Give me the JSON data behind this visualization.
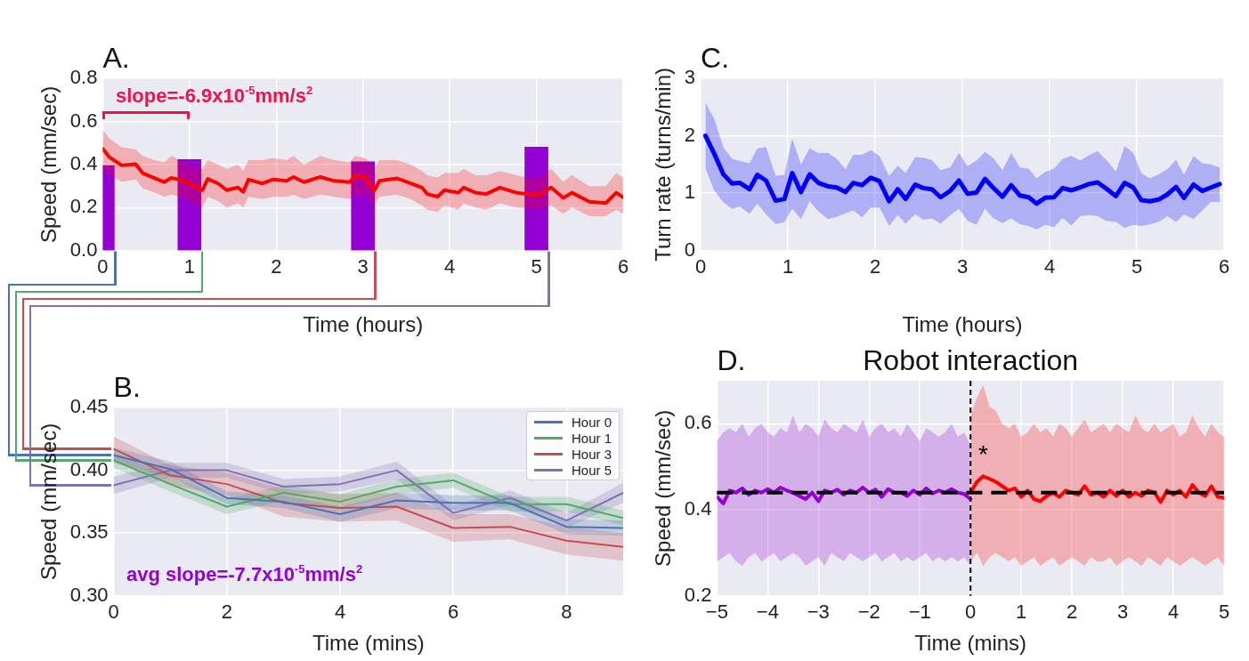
{
  "chart_data": [
    {
      "type": "line",
      "title": "A.",
      "xlabel": "Time (hours)",
      "ylabel": "Speed (mm/sec)",
      "grid": true,
      "xlim": [
        0,
        6
      ],
      "xticks": [
        0,
        1,
        2,
        3,
        4,
        5,
        6
      ],
      "ylim": [
        0,
        0.8
      ],
      "yticks": [
        {
          "value": 0,
          "label": "0.0"
        },
        0.2,
        0.4,
        0.6,
        0.8
      ],
      "annotations": [
        "slope=-6.9x10$^{-5}$mm/s$^{2}$"
      ],
      "series": [
        {
          "type": "bar",
          "color": "#9400d3",
          "x": [
            0,
            1,
            3,
            5
          ],
          "values": [
            0.395,
            0.423,
            0.413,
            0.481
          ]
        },
        {
          "type": "line",
          "color": "#ff0000",
          "x": [
            0,
            0.08,
            0.22,
            0.38,
            0.46,
            0.6,
            0.71,
            0.79,
            0.89,
            1.01,
            1.15,
            1.21,
            1.33,
            1.43,
            1.56,
            1.62,
            1.68,
            1.84,
            1.96,
            2.12,
            2.2,
            2.32,
            2.51,
            2.67,
            2.85,
            2.91,
            3.03,
            3.13,
            3.19,
            3.39,
            3.55,
            3.68,
            3.74,
            3.86,
            3.94,
            4.1,
            4.16,
            4.3,
            4.42,
            4.58,
            4.77,
            5.01,
            5.17,
            5.31,
            5.41,
            5.61,
            5.8,
            5.92,
            6
          ],
          "values": [
            0.473,
            0.433,
            0.396,
            0.402,
            0.36,
            0.336,
            0.318,
            0.338,
            0.33,
            0.309,
            0.281,
            0.333,
            0.312,
            0.281,
            0.293,
            0.273,
            0.33,
            0.312,
            0.33,
            0.324,
            0.342,
            0.318,
            0.342,
            0.324,
            0.318,
            0.348,
            0.342,
            0.279,
            0.324,
            0.336,
            0.312,
            0.293,
            0.263,
            0.251,
            0.281,
            0.269,
            0.293,
            0.269,
            0.263,
            0.293,
            0.269,
            0.257,
            0.293,
            0.245,
            0.269,
            0.227,
            0.221,
            0.269,
            0.247
          ],
          "upper": [
            0.56,
            0.52,
            0.48,
            0.47,
            0.44,
            0.42,
            0.41,
            0.44,
            0.42,
            0.39,
            0.38,
            0.42,
            0.4,
            0.38,
            0.4,
            0.37,
            0.42,
            0.42,
            0.43,
            0.42,
            0.44,
            0.4,
            0.44,
            0.42,
            0.41,
            0.44,
            0.43,
            0.38,
            0.42,
            0.42,
            0.4,
            0.37,
            0.35,
            0.34,
            0.36,
            0.36,
            0.38,
            0.35,
            0.35,
            0.37,
            0.35,
            0.33,
            0.38,
            0.32,
            0.35,
            0.3,
            0.3,
            0.36,
            0.34
          ],
          "lower": [
            0.39,
            0.35,
            0.32,
            0.33,
            0.29,
            0.27,
            0.25,
            0.26,
            0.25,
            0.23,
            0.2,
            0.25,
            0.23,
            0.2,
            0.22,
            0.2,
            0.25,
            0.24,
            0.25,
            0.25,
            0.26,
            0.24,
            0.26,
            0.25,
            0.24,
            0.26,
            0.26,
            0.21,
            0.25,
            0.26,
            0.24,
            0.21,
            0.19,
            0.18,
            0.21,
            0.19,
            0.22,
            0.2,
            0.19,
            0.22,
            0.2,
            0.19,
            0.21,
            0.17,
            0.2,
            0.16,
            0.16,
            0.19,
            0.17
          ]
        }
      ]
    },
    {
      "type": "line",
      "title": "C.",
      "xlabel": "Time (hours)",
      "ylabel": "Turn rate (turns/min)",
      "grid": true,
      "xlim": [
        0,
        6
      ],
      "xticks": [
        0,
        1,
        2,
        3,
        4,
        5,
        6
      ],
      "ylim": [
        0,
        3
      ],
      "yticks": [
        0,
        1,
        2,
        3
      ],
      "series": [
        {
          "color": "#0000ff",
          "x": [
            0.055,
            0.155,
            0.26,
            0.36,
            0.45,
            0.56,
            0.65,
            0.75,
            0.86,
            0.96,
            1.05,
            1.15,
            1.25,
            1.35,
            1.46,
            1.56,
            1.66,
            1.75,
            1.85,
            1.95,
            2.05,
            2.16,
            2.26,
            2.35,
            2.46,
            2.55,
            2.65,
            2.75,
            2.86,
            2.96,
            3.06,
            3.16,
            3.26,
            3.35,
            3.46,
            3.56,
            3.66,
            3.76,
            3.85,
            3.95,
            4.05,
            4.15,
            4.25,
            4.35,
            4.45,
            4.55,
            4.65,
            4.76,
            4.86,
            4.96,
            5.05,
            5.15,
            5.25,
            5.35,
            5.45,
            5.54,
            5.65,
            5.75,
            5.85,
            5.95
          ],
          "values": [
            2.0,
            1.69,
            1.33,
            1.17,
            1.18,
            1.07,
            1.32,
            1.22,
            0.87,
            0.9,
            1.35,
            1.02,
            1.33,
            1.18,
            1.12,
            1.1,
            1.02,
            1.18,
            1.14,
            1.27,
            1.21,
            0.86,
            1.07,
            0.9,
            1.15,
            1.09,
            1.07,
            0.93,
            1.04,
            1.22,
            0.99,
            1.01,
            1.25,
            1.1,
            0.94,
            1.14,
            0.96,
            0.93,
            0.82,
            0.92,
            0.93,
            1.09,
            1.05,
            1.1,
            1.16,
            1.19,
            1.08,
            0.95,
            1.18,
            1.1,
            0.88,
            0.86,
            0.89,
            0.98,
            1.11,
            0.92,
            1.15,
            1.04,
            1.1,
            1.16
          ],
          "upper": [
            2.58,
            2.3,
            1.8,
            1.6,
            1.56,
            1.52,
            1.78,
            1.8,
            1.3,
            1.32,
            1.95,
            1.5,
            1.78,
            1.7,
            1.7,
            1.6,
            1.42,
            1.67,
            1.67,
            1.75,
            1.65,
            1.3,
            1.48,
            1.35,
            1.63,
            1.62,
            1.58,
            1.4,
            1.45,
            1.7,
            1.47,
            1.57,
            1.72,
            1.62,
            1.4,
            1.7,
            1.45,
            1.43,
            1.26,
            1.37,
            1.43,
            1.6,
            1.65,
            1.57,
            1.66,
            1.73,
            1.58,
            1.38,
            1.82,
            1.7,
            1.35,
            1.26,
            1.33,
            1.42,
            1.58,
            1.32,
            1.65,
            1.52,
            1.5,
            1.45
          ],
          "lower": [
            1.43,
            1.05,
            0.84,
            0.73,
            0.77,
            0.64,
            0.82,
            0.63,
            0.46,
            0.5,
            0.73,
            0.55,
            0.86,
            0.68,
            0.55,
            0.59,
            0.65,
            0.7,
            0.58,
            0.75,
            0.75,
            0.43,
            0.62,
            0.47,
            0.64,
            0.54,
            0.56,
            0.47,
            0.62,
            0.73,
            0.52,
            0.45,
            0.73,
            0.57,
            0.48,
            0.56,
            0.46,
            0.43,
            0.37,
            0.45,
            0.41,
            0.57,
            0.44,
            0.6,
            0.62,
            0.6,
            0.52,
            0.5,
            0.4,
            0.45,
            0.43,
            0.46,
            0.5,
            0.6,
            0.5,
            0.63,
            0.55,
            0.7,
            0.85,
            0.85
          ]
        }
      ]
    },
    {
      "type": "line",
      "title": "B.",
      "xlabel": "Time (mins)",
      "ylabel": "Speed (mm/sec)",
      "grid": true,
      "legend": "top right",
      "x": [
        0,
        1,
        2,
        3,
        4,
        5,
        6,
        7,
        8,
        9
      ],
      "xlim": [
        0,
        9
      ],
      "xticks": [
        0,
        2,
        4,
        6,
        8
      ],
      "ylim": [
        0.3,
        0.45
      ],
      "yticks": [
        {
          "value": 0.3,
          "label": "0.30"
        },
        0.35,
        {
          "value": 0.4,
          "label": "0.40"
        },
        0.45
      ],
      "annotations": [
        "avg slope=-7.7x10$^{-5}$mm/s$^{2}$"
      ],
      "series": [
        {
          "name": "Hour 0",
          "color": "#4c72b0",
          "values": [
            0.412,
            0.401,
            0.378,
            0.375,
            0.365,
            0.376,
            0.374,
            0.374,
            0.355,
            0.354
          ],
          "lower": [
            0.406,
            0.395,
            0.373,
            0.37,
            0.359,
            0.37,
            0.368,
            0.368,
            0.349,
            0.348
          ],
          "upper": [
            0.418,
            0.407,
            0.383,
            0.38,
            0.371,
            0.382,
            0.38,
            0.38,
            0.361,
            0.36
          ]
        },
        {
          "name": "Hour 1",
          "color": "#55a868",
          "values": [
            0.408,
            0.389,
            0.371,
            0.382,
            0.375,
            0.387,
            0.392,
            0.373,
            0.373,
            0.362
          ],
          "lower": [
            0.402,
            0.383,
            0.365,
            0.376,
            0.369,
            0.381,
            0.386,
            0.367,
            0.367,
            0.356
          ],
          "upper": [
            0.414,
            0.395,
            0.377,
            0.388,
            0.381,
            0.393,
            0.398,
            0.379,
            0.379,
            0.368
          ]
        },
        {
          "name": "Hour 3",
          "color": "#c44e52",
          "values": [
            0.417,
            0.396,
            0.389,
            0.374,
            0.37,
            0.371,
            0.354,
            0.355,
            0.344,
            0.339
          ],
          "lower": [
            0.407,
            0.388,
            0.38,
            0.363,
            0.359,
            0.36,
            0.343,
            0.345,
            0.333,
            0.328
          ],
          "upper": [
            0.427,
            0.404,
            0.398,
            0.385,
            0.381,
            0.382,
            0.365,
            0.365,
            0.355,
            0.35
          ]
        },
        {
          "name": "Hour 5",
          "color": "#8172b2",
          "values": [
            0.388,
            0.4,
            0.4,
            0.387,
            0.389,
            0.4,
            0.366,
            0.378,
            0.36,
            0.382
          ],
          "lower": [
            0.381,
            0.394,
            0.394,
            0.381,
            0.383,
            0.393,
            0.36,
            0.372,
            0.354,
            0.374
          ],
          "upper": [
            0.395,
            0.406,
            0.406,
            0.393,
            0.395,
            0.407,
            0.372,
            0.384,
            0.366,
            0.39
          ]
        }
      ]
    },
    {
      "type": "line",
      "title": "D.",
      "subtitle": "Robot interaction",
      "xlabel": "Time (mins)",
      "ylabel": "Speed (mm/sec)",
      "grid": true,
      "xlim": [
        -5,
        5
      ],
      "xticks": [
        {
          "value": -5,
          "label": "−5"
        },
        {
          "value": -4,
          "label": "−4"
        },
        {
          "value": -3,
          "label": "−3"
        },
        {
          "value": -2,
          "label": "−2"
        },
        {
          "value": -1,
          "label": "−1"
        },
        0,
        1,
        2,
        3,
        4,
        5
      ],
      "ylim": [
        0.2,
        0.7
      ],
      "yticks": [
        0.2,
        0.4,
        0.6
      ],
      "ref_lines": [
        {
          "axis": "y",
          "value": 0.44,
          "color": "#000000",
          "line_style": "dashed"
        },
        {
          "axis": "x",
          "value": 0,
          "color": "#000000",
          "line_style": "dashed"
        }
      ],
      "annotations": [
        "*"
      ],
      "series": [
        {
          "color": "#9400d3",
          "x": [
            -5,
            -4.875,
            -4.75,
            -4.625,
            -4.5,
            -4.375,
            -4.25,
            -4.125,
            -4,
            -3.875,
            -3.75,
            -3.625,
            -3.5,
            -3.375,
            -3.25,
            -3.125,
            -3,
            -2.875,
            -2.75,
            -2.625,
            -2.5,
            -2.375,
            -2.25,
            -2.125,
            -2,
            -1.875,
            -1.75,
            -1.625,
            -1.5,
            -1.375,
            -1.25,
            -1.125,
            -1,
            -0.875,
            -0.75,
            -0.625,
            -0.5,
            -0.375,
            -0.25,
            -0.125,
            0
          ],
          "values": [
            0.43,
            0.415,
            0.445,
            0.44,
            0.45,
            0.435,
            0.445,
            0.44,
            0.448,
            0.44,
            0.452,
            0.445,
            0.44,
            0.432,
            0.425,
            0.44,
            0.42,
            0.445,
            0.44,
            0.447,
            0.435,
            0.445,
            0.44,
            0.452,
            0.44,
            0.447,
            0.43,
            0.448,
            0.44,
            0.44,
            0.432,
            0.445,
            0.435,
            0.45,
            0.438,
            0.445,
            0.44,
            0.448,
            0.44,
            0.437,
            0.425
          ],
          "upper": [
            0.56,
            0.58,
            0.59,
            0.58,
            0.6,
            0.57,
            0.59,
            0.6,
            0.58,
            0.57,
            0.59,
            0.58,
            0.62,
            0.58,
            0.6,
            0.59,
            0.57,
            0.61,
            0.59,
            0.58,
            0.6,
            0.59,
            0.58,
            0.61,
            0.57,
            0.59,
            0.6,
            0.58,
            0.59,
            0.57,
            0.6,
            0.58,
            0.56,
            0.59,
            0.58,
            0.57,
            0.58,
            0.6,
            0.57,
            0.58,
            0.55
          ],
          "lower": [
            0.28,
            0.29,
            0.3,
            0.28,
            0.27,
            0.29,
            0.3,
            0.28,
            0.29,
            0.3,
            0.28,
            0.29,
            0.3,
            0.29,
            0.27,
            0.28,
            0.29,
            0.27,
            0.3,
            0.29,
            0.28,
            0.3,
            0.29,
            0.28,
            0.29,
            0.3,
            0.28,
            0.29,
            0.3,
            0.28,
            0.29,
            0.28,
            0.29,
            0.3,
            0.28,
            0.29,
            0.28,
            0.29,
            0.28,
            0.29,
            0.27
          ]
        },
        {
          "color": "#ff0000",
          "x": [
            0,
            0.125,
            0.25,
            0.375,
            0.5,
            0.625,
            0.75,
            0.875,
            1,
            1.125,
            1.25,
            1.375,
            1.5,
            1.625,
            1.75,
            1.875,
            2,
            2.125,
            2.25,
            2.375,
            2.5,
            2.625,
            2.75,
            2.875,
            3,
            3.125,
            3.25,
            3.375,
            3.5,
            3.625,
            3.75,
            3.875,
            4,
            4.125,
            4.25,
            4.375,
            4.5,
            4.625,
            4.75,
            4.875,
            5
          ],
          "values": [
            0.44,
            0.465,
            0.478,
            0.472,
            0.465,
            0.455,
            0.445,
            0.45,
            0.43,
            0.445,
            0.425,
            0.42,
            0.432,
            0.44,
            0.43,
            0.445,
            0.44,
            0.435,
            0.455,
            0.435,
            0.44,
            0.43,
            0.445,
            0.432,
            0.445,
            0.43,
            0.44,
            0.432,
            0.445,
            0.44,
            0.418,
            0.445,
            0.435,
            0.445,
            0.43,
            0.458,
            0.44,
            0.432,
            0.455,
            0.43,
            0.428
          ],
          "upper": [
            0.62,
            0.66,
            0.69,
            0.64,
            0.63,
            0.6,
            0.59,
            0.6,
            0.57,
            0.58,
            0.6,
            0.58,
            0.59,
            0.57,
            0.6,
            0.59,
            0.57,
            0.59,
            0.61,
            0.58,
            0.59,
            0.6,
            0.58,
            0.6,
            0.59,
            0.58,
            0.62,
            0.59,
            0.58,
            0.6,
            0.58,
            0.59,
            0.6,
            0.57,
            0.58,
            0.62,
            0.59,
            0.57,
            0.6,
            0.58,
            0.57
          ],
          "lower": [
            0.28,
            0.3,
            0.27,
            0.29,
            0.3,
            0.29,
            0.28,
            0.29,
            0.27,
            0.28,
            0.29,
            0.27,
            0.28,
            0.29,
            0.27,
            0.28,
            0.29,
            0.28,
            0.27,
            0.29,
            0.28,
            0.28,
            0.29,
            0.27,
            0.28,
            0.29,
            0.28,
            0.27,
            0.29,
            0.28,
            0.27,
            0.29,
            0.28,
            0.27,
            0.28,
            0.29,
            0.28,
            0.27,
            0.28,
            0.29,
            0.27
          ]
        }
      ]
    }
  ]
}
